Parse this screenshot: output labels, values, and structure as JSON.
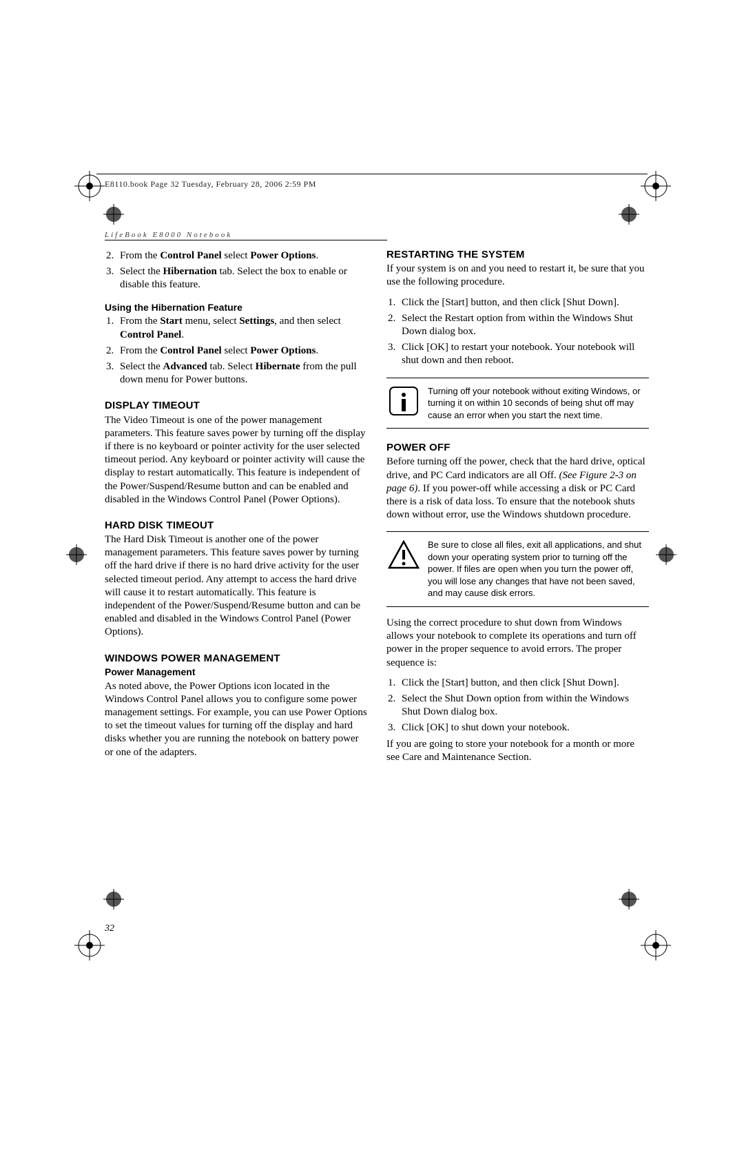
{
  "header_text": "E8110.book  Page 32  Tuesday, February 28, 2006  2:59 PM",
  "running_head": "LifeBook E8000 Notebook",
  "page_number": "32",
  "left": {
    "intro_list": [
      "From the <b>Control Panel</b> select <b>Power Options</b>.",
      "Select the <b>Hibernation</b> tab. Select the box to enable or disable this feature."
    ],
    "hib_head": "Using the Hibernation Feature",
    "hib_list": [
      "From the <b>Start</b> menu, select <b>Settings</b>, and then select <b>Control Panel</b>.",
      "From the <b>Control Panel</b> select <b>Power Options</b>.",
      "Select the <b>Advanced</b> tab. Select <b>Hibernate</b> from the pull down menu for Power buttons."
    ],
    "disp_head": "DISPLAY TIMEOUT",
    "disp_body": "The Video Timeout is one of the power management parameters. This feature saves power by turning off the display if there is no keyboard or pointer activity for the user selected timeout period. Any keyboard or pointer activity will cause the display to restart automatically. This feature is independent of the Power/Suspend/Resume button and can be enabled and disabled in the Windows Control Panel (Power Options).",
    "hd_head": "HARD DISK TIMEOUT",
    "hd_body": "The Hard Disk Timeout is another one of the power management parameters. This feature saves power by turning off the hard drive if there is no hard drive activity for the user selected timeout period. Any attempt to access the hard drive will cause it to restart automatically. This feature is independent of the Power/Suspend/Resume button and can be enabled and disabled in the Windows Control Panel (Power Options).",
    "wpm_head": "WINDOWS POWER MANAGEMENT",
    "wpm_sub": "Power Management",
    "wpm_body": "As noted above, the Power Options icon located in the Windows Control Panel allows you to configure some power management settings. For example, you can use Power Options to set the timeout values for turning off the display and hard disks whether you are running the notebook on battery power or one of the adapters."
  },
  "right": {
    "restart_head": "RESTARTING THE SYSTEM",
    "restart_intro": "If your system is on and you need to restart it, be sure that you use the following procedure.",
    "restart_list": [
      "Click the [Start] button, and then click [Shut Down].",
      "Select the Restart option from within the Windows Shut Down dialog box.",
      "Click [OK] to restart your notebook. Your notebook will shut down and then reboot."
    ],
    "info_note": "Turning off your notebook without exiting Windows, or turning it on within 10 seconds of being shut off may cause an error when you start the next time.",
    "poweroff_head": "POWER OFF",
    "poweroff_body": "Before turning off the power, check that the hard drive, optical drive, and PC Card indicators are all Off. <i>(See Figure 2-3 on page 6)</i>. If you power-off while accessing a disk or PC Card there is a risk of data loss. To ensure that the notebook shuts down without error, use the Windows shutdown procedure.",
    "warn_note": "Be sure to close all files, exit all applications, and shut down your operating system prior to turning off the power. If files are open when you turn the power off, you will lose any changes that have not been saved, and may cause disk errors.",
    "shutdown_intro": "Using the correct procedure to shut down from Windows allows your notebook to complete its operations and turn off power in the proper sequence to avoid errors. The proper sequence is:",
    "shutdown_list": [
      "Click the [Start] button, and then click [Shut Down].",
      "Select the Shut Down option from within the Windows Shut Down dialog box.",
      "Click [OK] to shut down your notebook."
    ],
    "store_body": "If you are going to store your notebook for a month or more see Care and Maintenance Section."
  }
}
